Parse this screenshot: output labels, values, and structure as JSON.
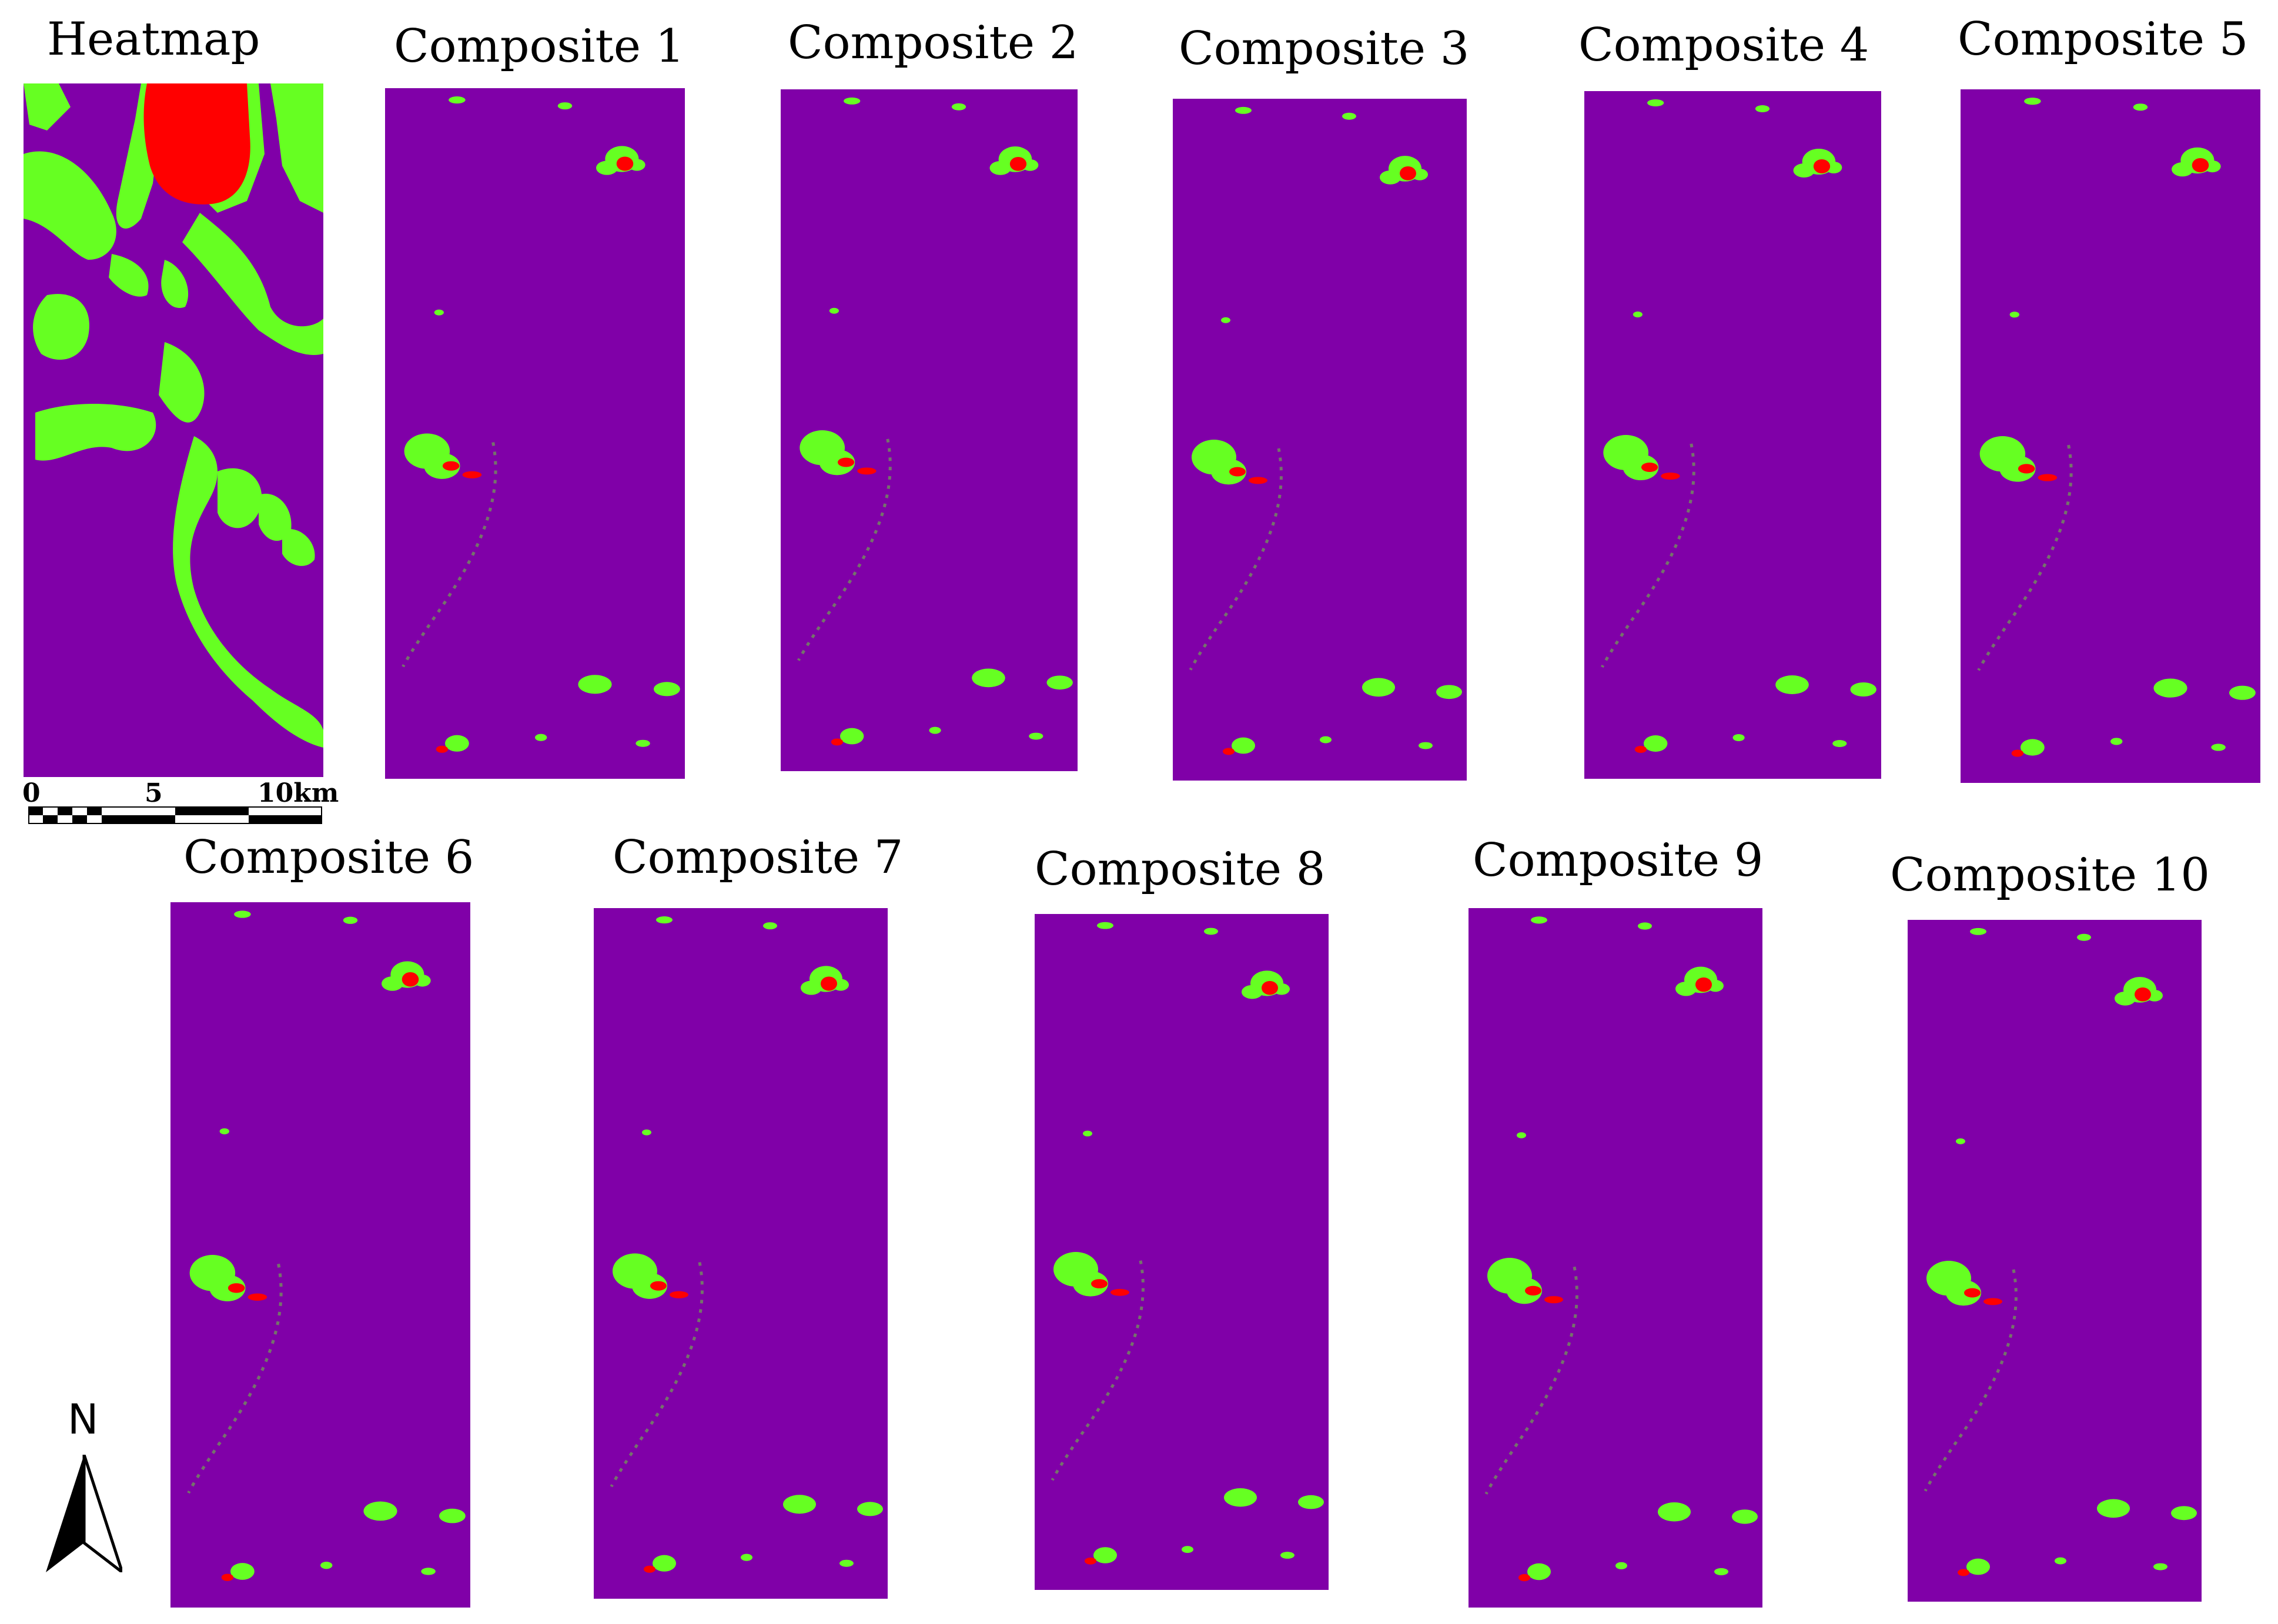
{
  "colors": {
    "background_class": "#8000a8",
    "low_class": "#66ff22",
    "high_class": "#ff0000"
  },
  "panels": [
    {
      "title": "Heatmap",
      "kind": "heatmap"
    },
    {
      "title": "Composite 1",
      "kind": "composite"
    },
    {
      "title": "Composite 2",
      "kind": "composite"
    },
    {
      "title": "Composite 3",
      "kind": "composite"
    },
    {
      "title": "Composite 4",
      "kind": "composite"
    },
    {
      "title": "Composite 5",
      "kind": "composite"
    },
    {
      "title": "Composite 6",
      "kind": "composite"
    },
    {
      "title": "Composite 7",
      "kind": "composite"
    },
    {
      "title": "Composite 8",
      "kind": "composite"
    },
    {
      "title": "Composite 9",
      "kind": "composite"
    },
    {
      "title": "Composite 10",
      "kind": "composite"
    }
  ],
  "scale_bar": {
    "labels": [
      "0",
      "5",
      "10km"
    ]
  },
  "north_arrow": {
    "label": "N",
    "icon": "north-arrow-icon"
  }
}
